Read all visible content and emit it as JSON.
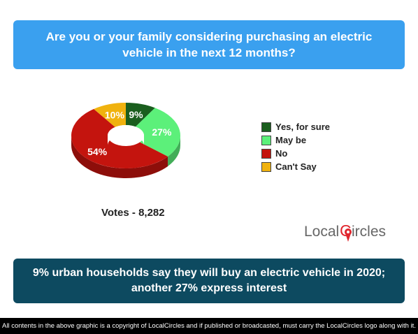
{
  "question": "Are you or your family considering purchasing an electric vehicle in the next 12 months?",
  "votes_label": "Votes - 8,282",
  "summary": "9% urban households say they will buy an electric vehicle in 2020; another 27% express interest",
  "footer": "All contents in the above graphic is a copyright of LocalCircles and if published or broadcasted, must carry the LocalCircles logo along with it.",
  "logo": {
    "text_local": "Local",
    "text_c": "C",
    "text_ircles": "ircles",
    "icon": "map-pin-icon"
  },
  "colors": {
    "question_bg": "#3aa0ef",
    "summary_bg": "#0d4a60",
    "footer_bg": "#000000",
    "logo_red": "#e0262e",
    "logo_gray": "#666666"
  },
  "chart_data": {
    "type": "pie",
    "style": "3d-donut",
    "categories": [
      "Yes, for sure",
      "May be",
      "No",
      "Can't Say"
    ],
    "values": [
      9,
      27,
      54,
      10
    ],
    "labels": [
      "9%",
      "27%",
      "54%",
      "10%"
    ],
    "colors": [
      "#1a5e1e",
      "#5cf07a",
      "#c4140e",
      "#f0b20e"
    ],
    "legend_position": "right",
    "title": ""
  }
}
